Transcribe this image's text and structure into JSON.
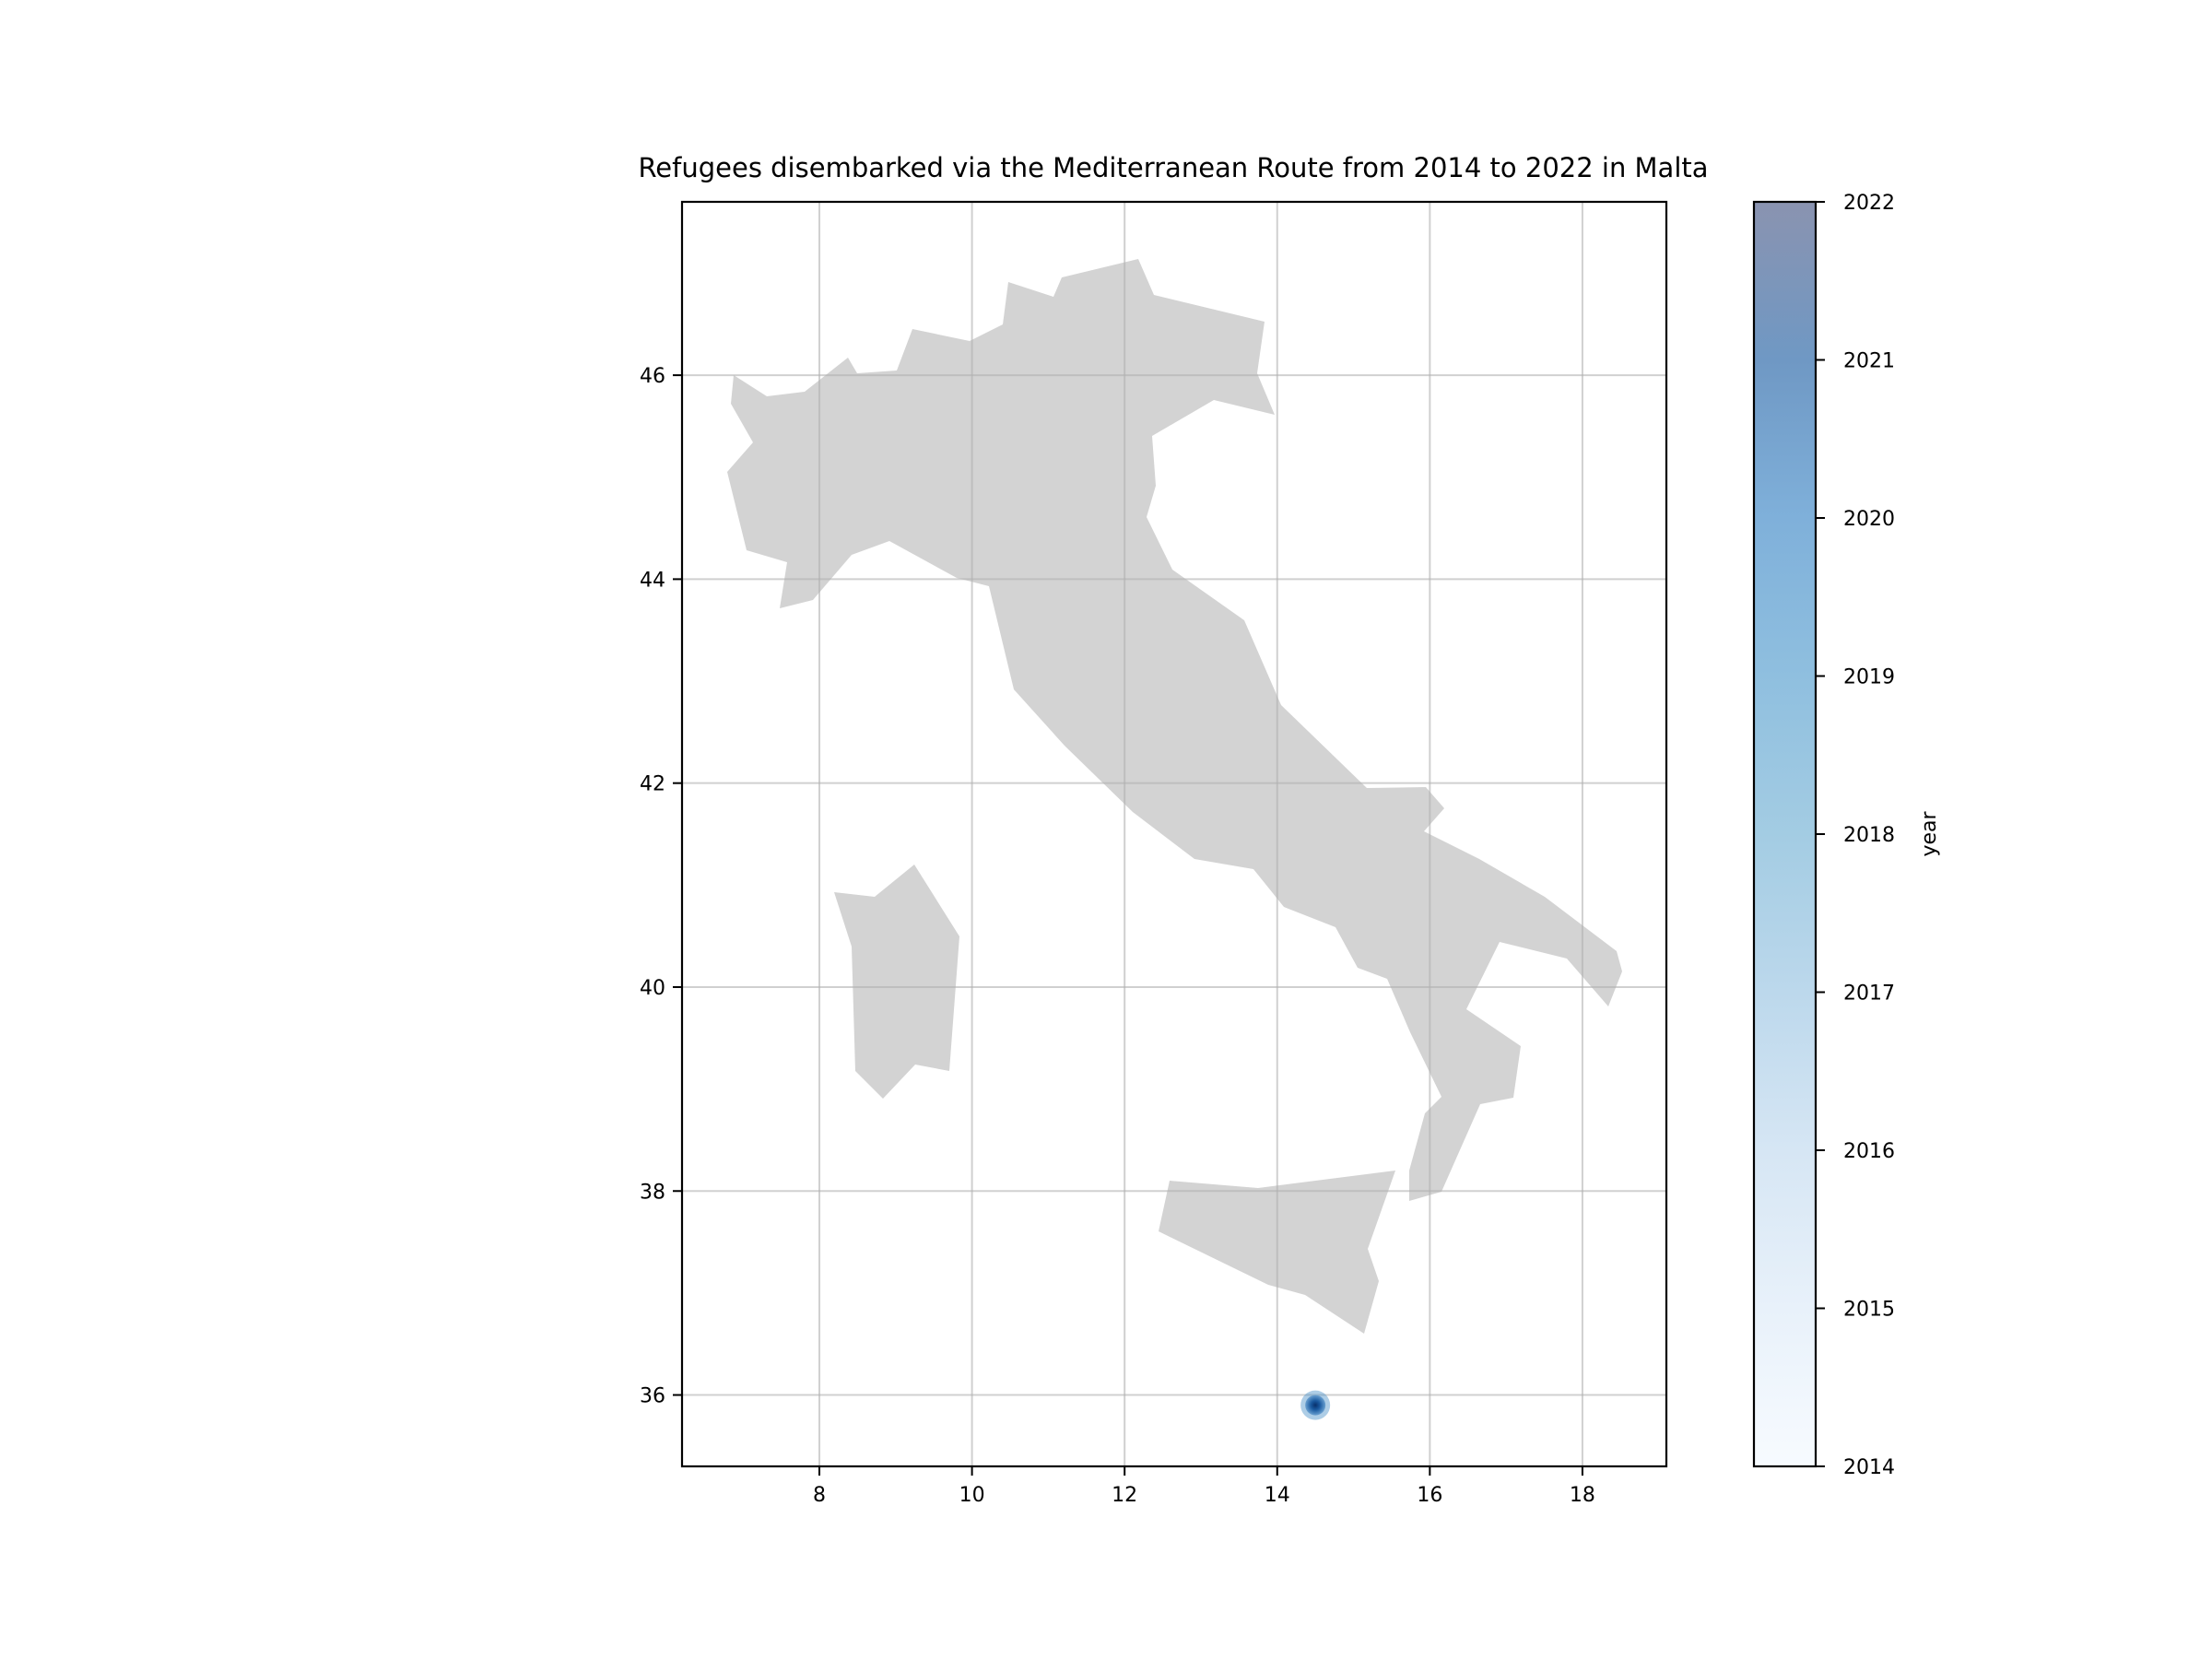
{
  "chart_data": {
    "type": "scatter",
    "title": "Refugees disembarked via the Mediterranean Route from 2014 to 2022 in Malta",
    "xlabel": "",
    "ylabel": "",
    "xlim": [
      6.2,
      19.1
    ],
    "ylim": [
      35.3,
      47.7
    ],
    "xticks": [
      8,
      10,
      12,
      14,
      16,
      18
    ],
    "yticks": [
      36,
      38,
      40,
      42,
      44,
      46
    ],
    "grid": true,
    "basemap": "Italy",
    "basemap_color": "#d3d3d3",
    "points": [
      {
        "x": 14.5,
        "y": 35.9,
        "year": 2022,
        "label": "Malta"
      }
    ],
    "colorbar": {
      "label": "year",
      "colormap": "Blues",
      "min": 2014,
      "max": 2022,
      "ticks": [
        2014,
        2015,
        2016,
        2017,
        2018,
        2019,
        2020,
        2021,
        2022
      ]
    }
  }
}
